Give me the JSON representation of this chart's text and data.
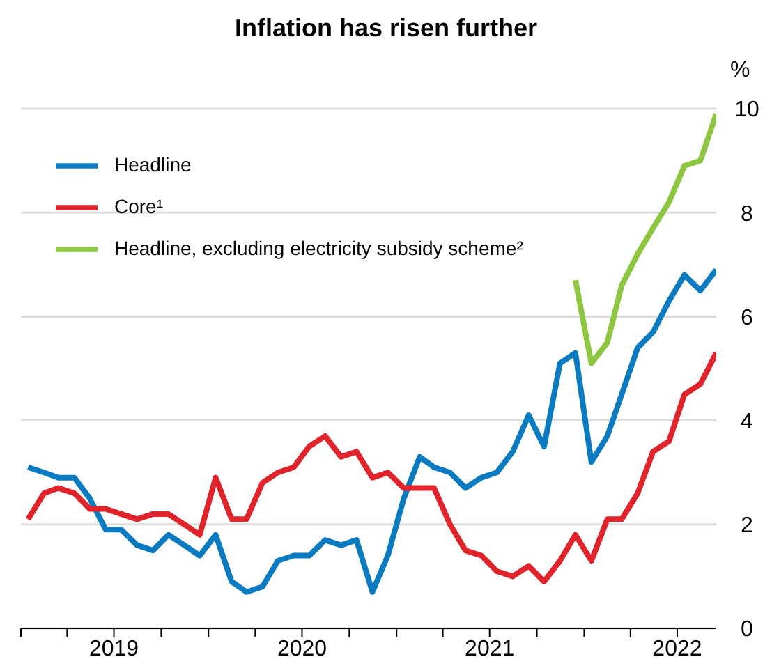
{
  "chart_data": {
    "type": "line",
    "title": "Inflation has risen further",
    "ylabel": "%",
    "x": [
      "2019-01-15",
      "2019-02-15",
      "2019-03-15",
      "2019-04-15",
      "2019-05-15",
      "2019-06-15",
      "2019-07-15",
      "2019-08-15",
      "2019-09-15",
      "2019-10-15",
      "2019-11-15",
      "2019-12-15",
      "2020-01-15",
      "2020-02-15",
      "2020-03-15",
      "2020-04-15",
      "2020-05-15",
      "2020-06-15",
      "2020-07-15",
      "2020-08-15",
      "2020-09-15",
      "2020-10-15",
      "2020-11-15",
      "2020-12-15",
      "2021-01-15",
      "2021-02-15",
      "2021-03-15",
      "2021-04-15",
      "2021-05-15",
      "2021-06-15",
      "2021-07-15",
      "2021-08-15",
      "2021-09-15",
      "2021-10-15",
      "2021-11-15",
      "2021-12-15",
      "2022-01-15",
      "2022-02-15",
      "2022-03-15",
      "2022-04-15",
      "2022-05-15",
      "2022-06-15",
      "2022-07-15",
      "2022-08-15",
      "2022-09-15"
    ],
    "series": [
      {
        "name": "Headline",
        "color": "#0a7bc1",
        "values": [
          3.1,
          3.0,
          2.9,
          2.9,
          2.5,
          1.9,
          1.9,
          1.6,
          1.5,
          1.8,
          1.6,
          1.4,
          1.8,
          0.9,
          0.7,
          0.8,
          1.3,
          1.4,
          1.4,
          1.7,
          1.6,
          1.7,
          0.7,
          1.4,
          2.5,
          3.3,
          3.1,
          3.0,
          2.7,
          2.9,
          3.0,
          3.4,
          4.1,
          3.5,
          5.1,
          5.3,
          3.2,
          3.7,
          4.5,
          5.4,
          5.7,
          6.3,
          6.8,
          6.5,
          6.9
        ]
      },
      {
        "name": "Core¹",
        "color": "#e0242c",
        "values": [
          2.1,
          2.6,
          2.7,
          2.6,
          2.3,
          2.3,
          2.2,
          2.1,
          2.2,
          2.2,
          2.0,
          1.8,
          2.9,
          2.1,
          2.1,
          2.8,
          3.0,
          3.1,
          3.5,
          3.7,
          3.3,
          3.4,
          2.9,
          3.0,
          2.7,
          2.7,
          2.7,
          2.0,
          1.5,
          1.4,
          1.1,
          1.0,
          1.2,
          0.9,
          1.3,
          1.8,
          1.3,
          2.1,
          2.1,
          2.6,
          3.4,
          3.6,
          4.5,
          4.7,
          5.3
        ]
      },
      {
        "name": "Headline, excluding electricity subsidy scheme²",
        "color": "#8dc641",
        "values": [
          null,
          null,
          null,
          null,
          null,
          null,
          null,
          null,
          null,
          null,
          null,
          null,
          null,
          null,
          null,
          null,
          null,
          null,
          null,
          null,
          null,
          null,
          null,
          null,
          null,
          null,
          null,
          null,
          null,
          null,
          null,
          null,
          null,
          null,
          null,
          6.7,
          5.1,
          5.5,
          6.6,
          7.2,
          7.7,
          8.2,
          8.9,
          9.0,
          9.9
        ]
      }
    ],
    "xlim": [
      "2019-01-01",
      "2022-09-15"
    ],
    "xticks": [
      {
        "value": "2019-01-01",
        "label": null
      },
      {
        "value": "2019-04-01",
        "label": null
      },
      {
        "value": "2019-07-01",
        "label": "2019"
      },
      {
        "value": "2019-10-01",
        "label": null
      },
      {
        "value": "2020-01-01",
        "label": null
      },
      {
        "value": "2020-04-01",
        "label": null
      },
      {
        "value": "2020-07-01",
        "label": "2020"
      },
      {
        "value": "2020-10-01",
        "label": null
      },
      {
        "value": "2021-01-01",
        "label": null
      },
      {
        "value": "2021-04-01",
        "label": null
      },
      {
        "value": "2021-07-01",
        "label": "2021"
      },
      {
        "value": "2021-10-01",
        "label": null
      },
      {
        "value": "2022-01-01",
        "label": null
      },
      {
        "value": "2022-04-01",
        "label": null
      },
      {
        "value": "2022-07-01",
        "label": "2022"
      }
    ],
    "ylim": [
      0,
      10
    ],
    "yticks": [
      0,
      2,
      4,
      6,
      8,
      10
    ],
    "grid": "y",
    "legend": "top left",
    "marker": "none"
  }
}
